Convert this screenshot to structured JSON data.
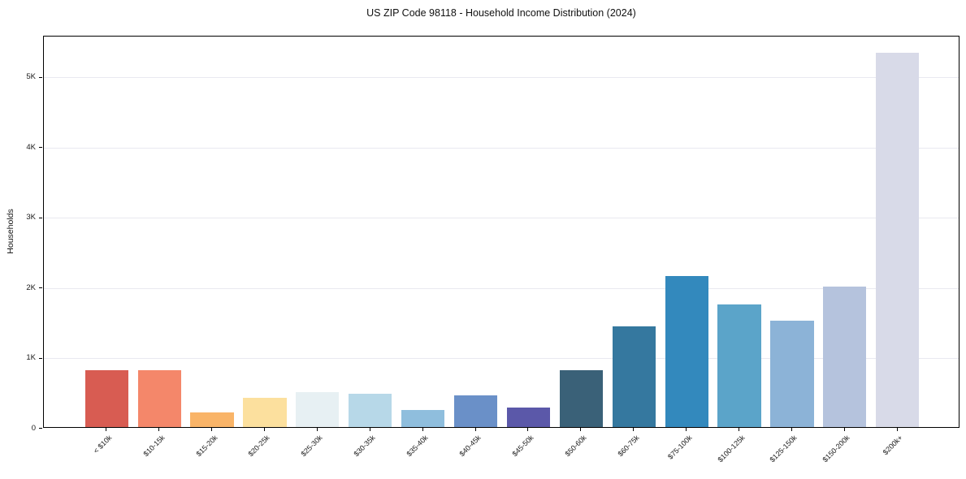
{
  "figure": {
    "title": "US ZIP Code 98118 - Household Income Distribution (2024)",
    "ylabel": "Households"
  },
  "chart_data": {
    "type": "bar",
    "title": "US ZIP Code 98118 - Household Income Distribution (2024)",
    "xlabel": "",
    "ylabel": "Households",
    "categories": [
      "< $10k",
      "$10-15k",
      "$15-20k",
      "$20-25k",
      "$25-30k",
      "$30-35k",
      "$35-40k",
      "$40-45k",
      "$45-50k",
      "$50-60k",
      "$60-75k",
      "$75-100k",
      "$100-125k",
      "$125-150k",
      "$150-200k",
      "$200k+"
    ],
    "values": [
      810,
      810,
      210,
      420,
      500,
      480,
      240,
      450,
      275,
      815,
      1440,
      2150,
      1745,
      1520,
      2000,
      5330
    ],
    "bar_colors": [
      "#d85c52",
      "#f4876a",
      "#f9b468",
      "#fce09e",
      "#e7f0f3",
      "#b7d8e8",
      "#8fbedd",
      "#6a90c8",
      "#5b58a9",
      "#3a6178",
      "#35789f",
      "#3389bd",
      "#5ba4c9",
      "#8cb3d7",
      "#b5c3dd",
      "#d8dae8"
    ],
    "ytick_values": [
      0,
      1000,
      2000,
      3000,
      4000,
      5000
    ],
    "ytick_labels": [
      "0",
      "1K",
      "2K",
      "3K",
      "4K",
      "5K"
    ],
    "ylim": [
      0,
      5590
    ],
    "xlim": [
      -1.19,
      16.19
    ],
    "bar_width_units": 0.82,
    "grid": true,
    "gridline_color": "#e9e9f0",
    "legend_position": "none"
  }
}
